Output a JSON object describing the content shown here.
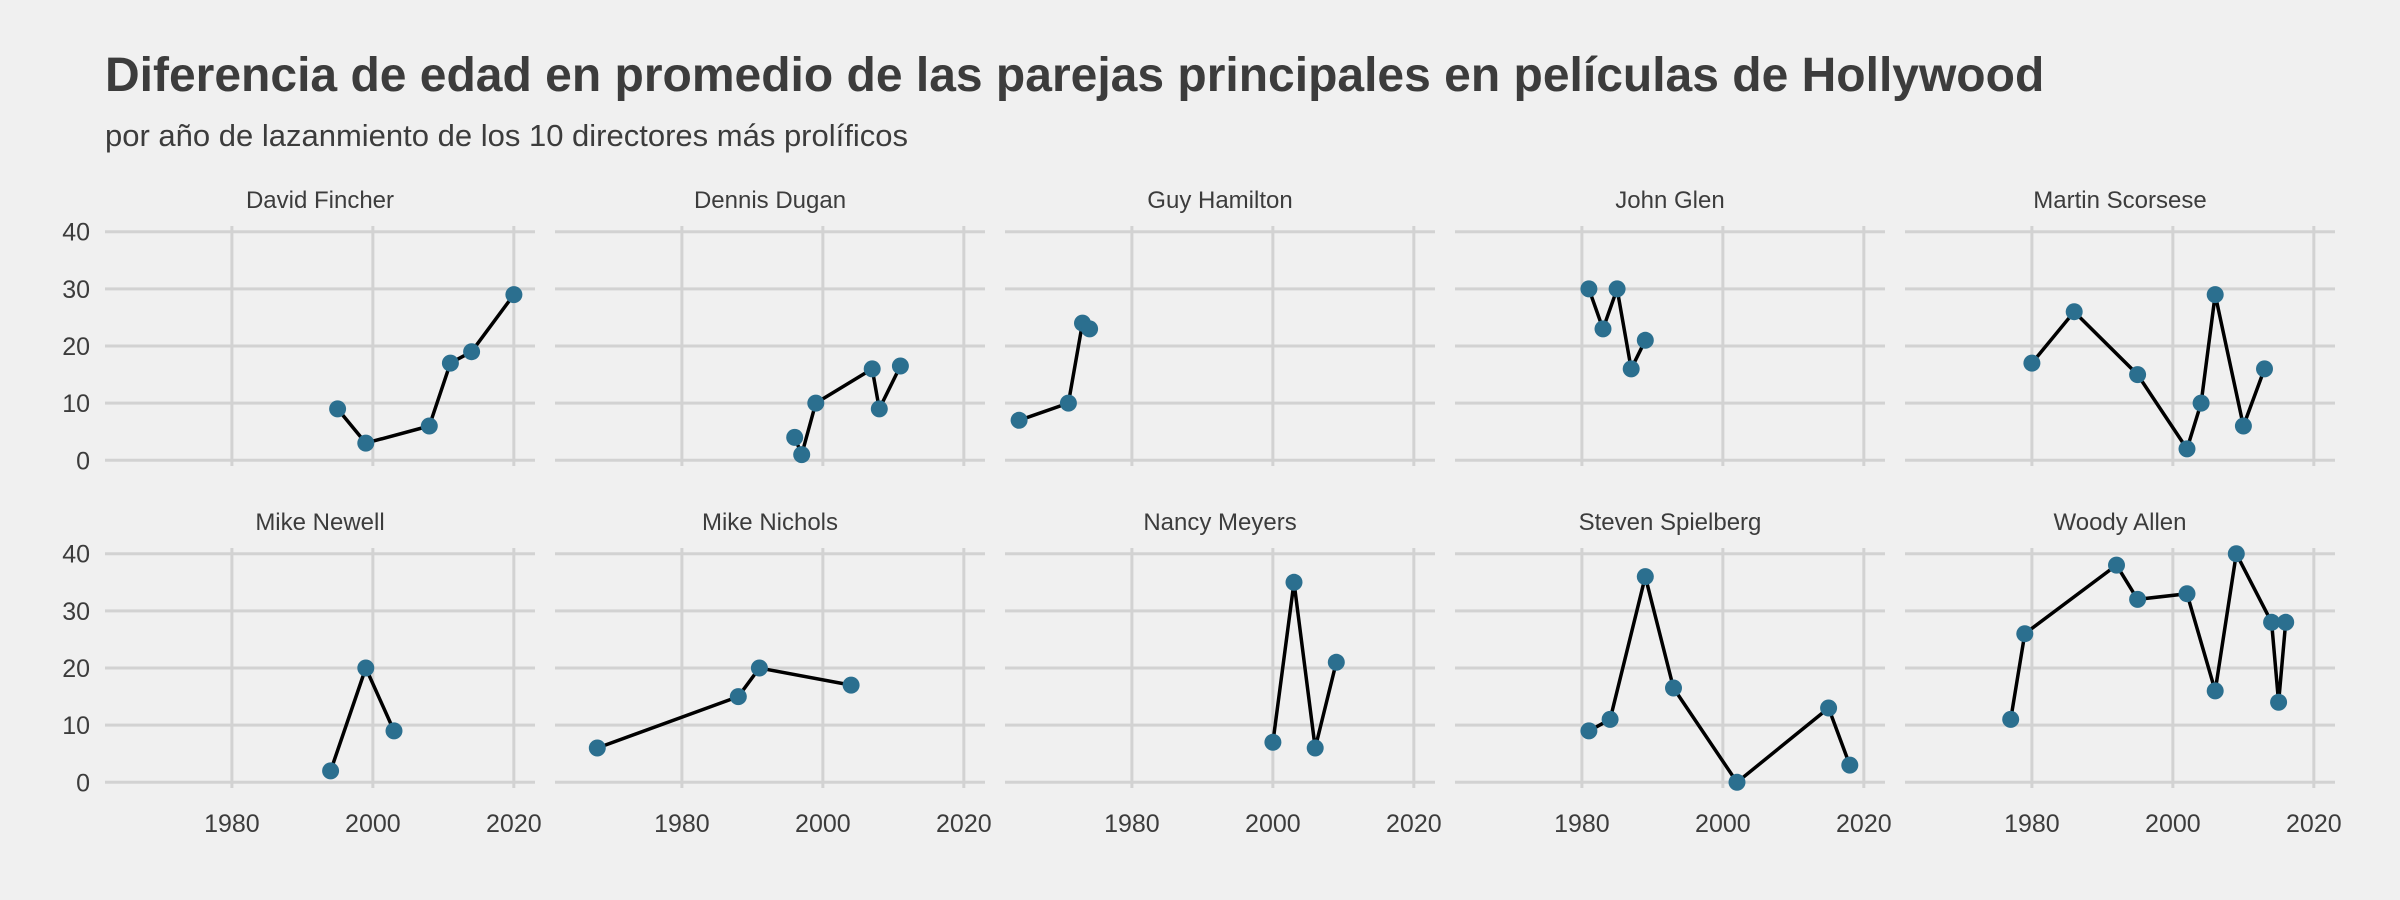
{
  "chart_data": {
    "type": "line",
    "title": "Diferencia de edad en promedio de las parejas principales en películas de Hollywood",
    "subtitle": "por año de lazanmiento de los 10 directores más prolíficos",
    "xlabel": "",
    "ylabel": "",
    "xlim": [
      1962,
      2023
    ],
    "ylim": [
      -1,
      41
    ],
    "x_ticks": [
      1980,
      2000,
      2020
    ],
    "y_ticks": [
      0,
      10,
      20,
      30,
      40
    ],
    "grid": true,
    "facet_layout": "2 rows x 5 columns",
    "colors": {
      "point": "#2b6f8f",
      "line": "#000000",
      "grid": "#d2d2d2",
      "background": "#f0f0f0"
    },
    "panels": [
      {
        "director": "David Fincher",
        "points": [
          [
            1995,
            9
          ],
          [
            1999,
            3
          ],
          [
            2008,
            6
          ],
          [
            2011,
            17
          ],
          [
            2014,
            19
          ],
          [
            2020,
            29
          ]
        ]
      },
      {
        "director": "Dennis Dugan",
        "points": [
          [
            1996,
            4
          ],
          [
            1997,
            1
          ],
          [
            1999,
            10
          ],
          [
            2007,
            16
          ],
          [
            2008,
            9
          ],
          [
            2011,
            16.5
          ]
        ]
      },
      {
        "director": "Guy Hamilton",
        "points": [
          [
            1964,
            7
          ],
          [
            1971,
            10
          ],
          [
            1973,
            24
          ],
          [
            1974,
            23
          ]
        ]
      },
      {
        "director": "John Glen",
        "points": [
          [
            1981,
            30
          ],
          [
            1983,
            23
          ],
          [
            1985,
            30
          ],
          [
            1987,
            16
          ],
          [
            1989,
            21
          ]
        ]
      },
      {
        "director": "Martin Scorsese",
        "points": [
          [
            1980,
            17
          ],
          [
            1986,
            26
          ],
          [
            1995,
            15
          ],
          [
            2002,
            2
          ],
          [
            2004,
            10
          ],
          [
            2006,
            29
          ],
          [
            2010,
            6
          ],
          [
            2013,
            16
          ]
        ]
      },
      {
        "director": "Mike Newell",
        "points": [
          [
            1994,
            2
          ],
          [
            1999,
            20
          ],
          [
            2003,
            9
          ]
        ]
      },
      {
        "director": "Mike Nichols",
        "points": [
          [
            1968,
            6
          ],
          [
            1988,
            15
          ],
          [
            1991,
            20
          ],
          [
            2004,
            17
          ]
        ]
      },
      {
        "director": "Nancy Meyers",
        "points": [
          [
            2000,
            7
          ],
          [
            2003,
            35
          ],
          [
            2006,
            6
          ],
          [
            2009,
            21
          ]
        ]
      },
      {
        "director": "Steven Spielberg",
        "points": [
          [
            1981,
            9
          ],
          [
            1984,
            11
          ],
          [
            1989,
            36
          ],
          [
            1993,
            16.5
          ],
          [
            2002,
            0
          ],
          [
            2015,
            13
          ],
          [
            2018,
            3
          ]
        ]
      },
      {
        "director": "Woody Allen",
        "points": [
          [
            1977,
            11
          ],
          [
            1979,
            26
          ],
          [
            1992,
            38
          ],
          [
            1995,
            32
          ],
          [
            2002,
            33
          ],
          [
            2006,
            16
          ],
          [
            2009,
            40
          ],
          [
            2014,
            28
          ],
          [
            2015,
            14
          ],
          [
            2016,
            28
          ]
        ]
      }
    ]
  }
}
